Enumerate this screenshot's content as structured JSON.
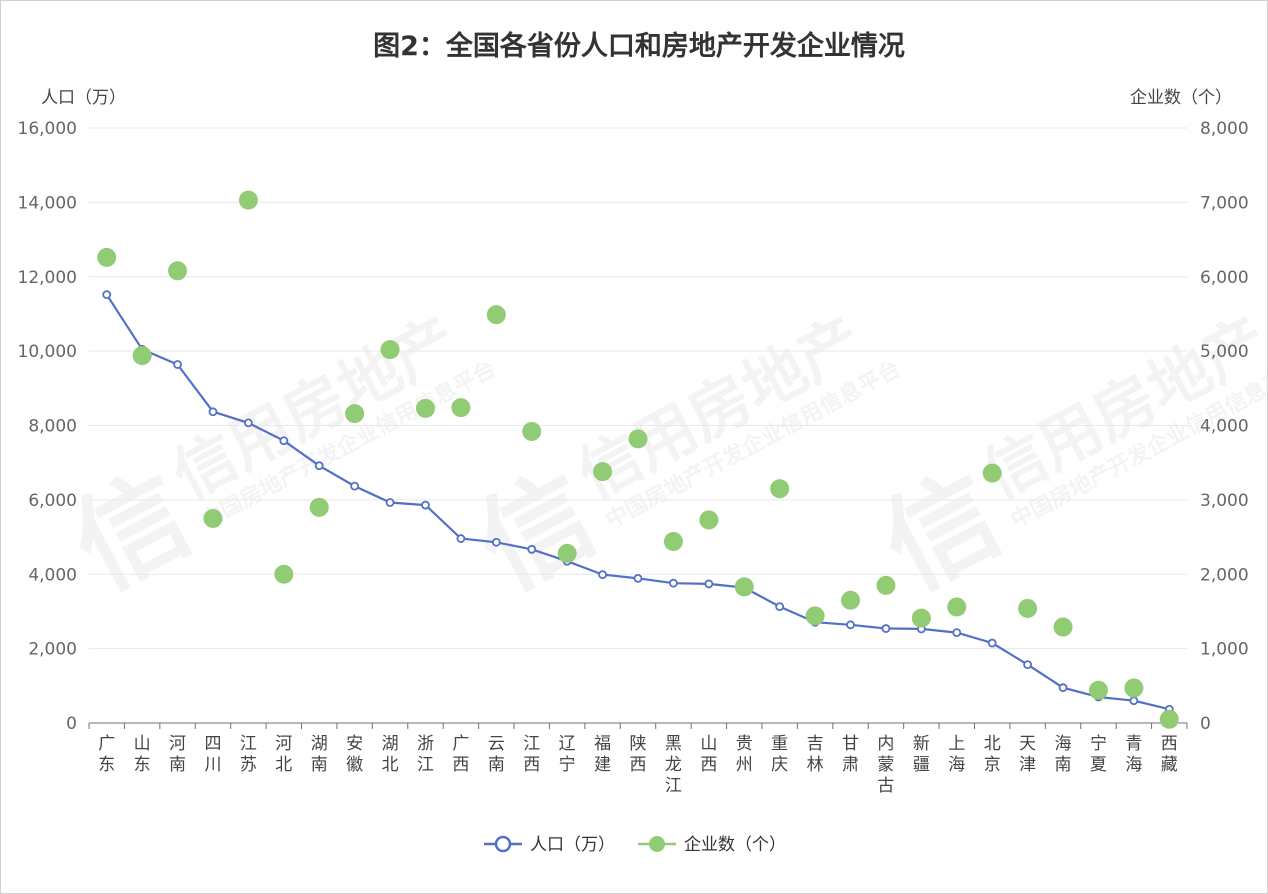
{
  "chart_data": {
    "type": "line+scatter",
    "title": "图2：全国各省份人口和房地产开发企业情况",
    "y_left_label": "人口（万）",
    "y_right_label": "企业数（个）",
    "y_left_range": [
      0,
      16000
    ],
    "y_right_range": [
      0,
      8000
    ],
    "y_left_ticks": [
      "0",
      "2,000",
      "4,000",
      "6,000",
      "8,000",
      "10,000",
      "12,000",
      "14,000",
      "16,000"
    ],
    "y_right_ticks": [
      "0",
      "1,000",
      "2,000",
      "3,000",
      "4,000",
      "5,000",
      "6,000",
      "7,000",
      "8,000"
    ],
    "categories": [
      "广东",
      "山东",
      "河南",
      "四川",
      "江苏",
      "河北",
      "湖南",
      "安徽",
      "湖北",
      "浙江",
      "广西",
      "云南",
      "江西",
      "辽宁",
      "福建",
      "陕西",
      "黑龙江",
      "山西",
      "贵州",
      "重庆",
      "吉林",
      "甘肃",
      "内蒙古",
      "新疆",
      "上海",
      "北京",
      "天津",
      "海南",
      "宁夏",
      "青海",
      "西藏"
    ],
    "series": [
      {
        "name": "人口（万）",
        "kind": "line",
        "axis": "left",
        "color": "#5470c6",
        "values": [
          11520,
          10050,
          9640,
          8370,
          8070,
          7590,
          6920,
          6370,
          5930,
          5860,
          4960,
          4860,
          4670,
          4350,
          3990,
          3890,
          3760,
          3740,
          3640,
          3130,
          2710,
          2640,
          2540,
          2530,
          2430,
          2150,
          1570,
          950,
          700,
          600,
          370
        ]
      },
      {
        "name": "企业数（个）",
        "kind": "scatter",
        "axis": "right",
        "color": "#91cc75",
        "values": [
          6260,
          4940,
          6080,
          2750,
          7030,
          2000,
          2900,
          4160,
          5020,
          4230,
          4240,
          5490,
          3920,
          2280,
          3380,
          3820,
          2440,
          2730,
          1830,
          3150,
          1440,
          1650,
          1850,
          1410,
          1560,
          3360,
          1540,
          1290,
          440,
          470,
          50
        ]
      }
    ],
    "legend_position": "bottom",
    "grid": true
  },
  "watermark": {
    "main": "信用房地产",
    "sub": "中国房地产开发企业信用信息平台",
    "logo": "信"
  }
}
